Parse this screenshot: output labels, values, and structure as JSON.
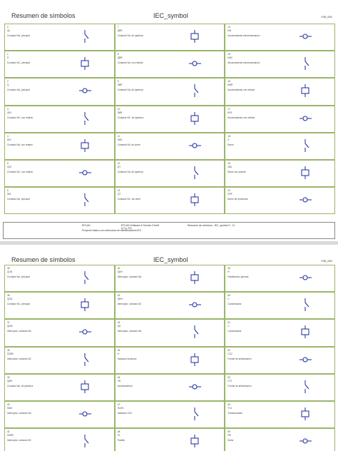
{
  "pages": [
    {
      "title": "Resumen de símbolos",
      "library": "IEC_symbol",
      "page_id": "Y05_001",
      "cells": [
        {
          "number": "0",
          "code": "QL",
          "description": "Contacto NA, principal"
        },
        {
          "number": "1",
          "code": "S",
          "description": "Contacto NC, principal"
        },
        {
          "number": "2",
          "code": "Q",
          "description": "Contacto NA, principal"
        },
        {
          "number": "3",
          "code": "QDI",
          "description": "Contacto NC, con retardo"
        },
        {
          "number": "4",
          "code": "DDI",
          "description": "Contacto NA, con retardo"
        },
        {
          "number": "5",
          "code": "QOI",
          "description": "Contacto NC, con retardo"
        },
        {
          "number": "6",
          "code": "SHI",
          "description": "Contacto NA, principal"
        },
        {
          "number": "7",
          "code": "QBR",
          "description": "Contacto NA, de apertura"
        },
        {
          "number": "8",
          "code": "QBR",
          "description": "Contacto NA, con retardo"
        },
        {
          "number": "9",
          "code": "SBR",
          "description": "Contacto NA, de apertura"
        },
        {
          "number": "10",
          "code": "SBR",
          "description": "Contacto NC, de apertura"
        },
        {
          "number": "11",
          "code": "SWL",
          "description": "Contacto NA, de cierre"
        },
        {
          "number": "12",
          "code": "QT",
          "description": "Contacto NA, de apertura"
        },
        {
          "number": "13",
          "code": "QT",
          "description": "Contacto NC, de cierre"
        },
        {
          "number": "14",
          "code": "KM",
          "description": "Accionamiento electromecánico"
        },
        {
          "number": "15",
          "code": "KM2",
          "description": "Accionamiento electromecánico"
        },
        {
          "number": "16",
          "code": "KMR",
          "description": "Accionamiento con retardo"
        },
        {
          "number": "17",
          "code": "KR1",
          "description": "Accionamiento con retardo"
        },
        {
          "number": "18",
          "code": "X",
          "description": "Borne"
        },
        {
          "number": "19",
          "code": "XBL",
          "description": "Borne con puente"
        },
        {
          "number": "20",
          "code": "XPE",
          "description": "Borne de protección"
        }
      ]
    },
    {
      "title": "Resumen de símbolos",
      "library": "IEC_symbol",
      "page_id": "Y05_002",
      "cells": [
        {
          "number": "35",
          "code": "QCB",
          "description": "Contacto NA, principal"
        },
        {
          "number": "36",
          "code": "QCB",
          "description": "Contacto NC, principal"
        },
        {
          "number": "37",
          "code": "QDM",
          "description": "Interruptor, contacto NA"
        },
        {
          "number": "38",
          "code": "SCBR",
          "description": "Interruptor, contacto NC"
        },
        {
          "number": "39",
          "code": "QBR",
          "description": "Contacto NA, de apertura"
        },
        {
          "number": "40",
          "code": "SDM",
          "description": "Interruptor, contacto NA"
        },
        {
          "number": "41",
          "code": "SCBR",
          "description": "Interruptor, contacto NC"
        },
        {
          "number": "42",
          "code": "QDH",
          "description": "Interruptor, contacto NA"
        },
        {
          "number": "43",
          "code": "QDH",
          "description": "Interruptor, contacto NC"
        },
        {
          "number": "44",
          "code": "QS",
          "description": "Interruptor, contacto NA"
        },
        {
          "number": "45",
          "code": "H",
          "description": "Indicador luminoso"
        },
        {
          "number": "46",
          "code": "YB",
          "description": "Accionamiento"
        },
        {
          "number": "47",
          "code": "HLED",
          "description": "Indicador LED"
        },
        {
          "number": "48",
          "code": "F1",
          "description": "Fusible"
        },
        {
          "number": "49",
          "code": "R",
          "description": "Resistencia, general"
        },
        {
          "number": "50",
          "code": "C",
          "description": "Condensador"
        },
        {
          "number": "51",
          "code": "C",
          "description": "Condensador"
        },
        {
          "number": "52",
          "code": "CC2",
          "description": "Fuente de alimentación"
        },
        {
          "number": "53",
          "code": "CT2",
          "description": "Fuente de alimentación"
        },
        {
          "number": "54",
          "code": "TC1",
          "description": "Transformador"
        },
        {
          "number": "55",
          "code": "PB",
          "description": "Motor"
        }
      ]
    }
  ],
  "footer": {
    "company": "EPLAN",
    "company_full": "EPLAN Software & Service GmbH & Co. KG",
    "doc_title": "Resumen de símbolos : IEC_symbol 0 - 11",
    "project": "Proyecto básico con estructura de identificadores IEC"
  }
}
